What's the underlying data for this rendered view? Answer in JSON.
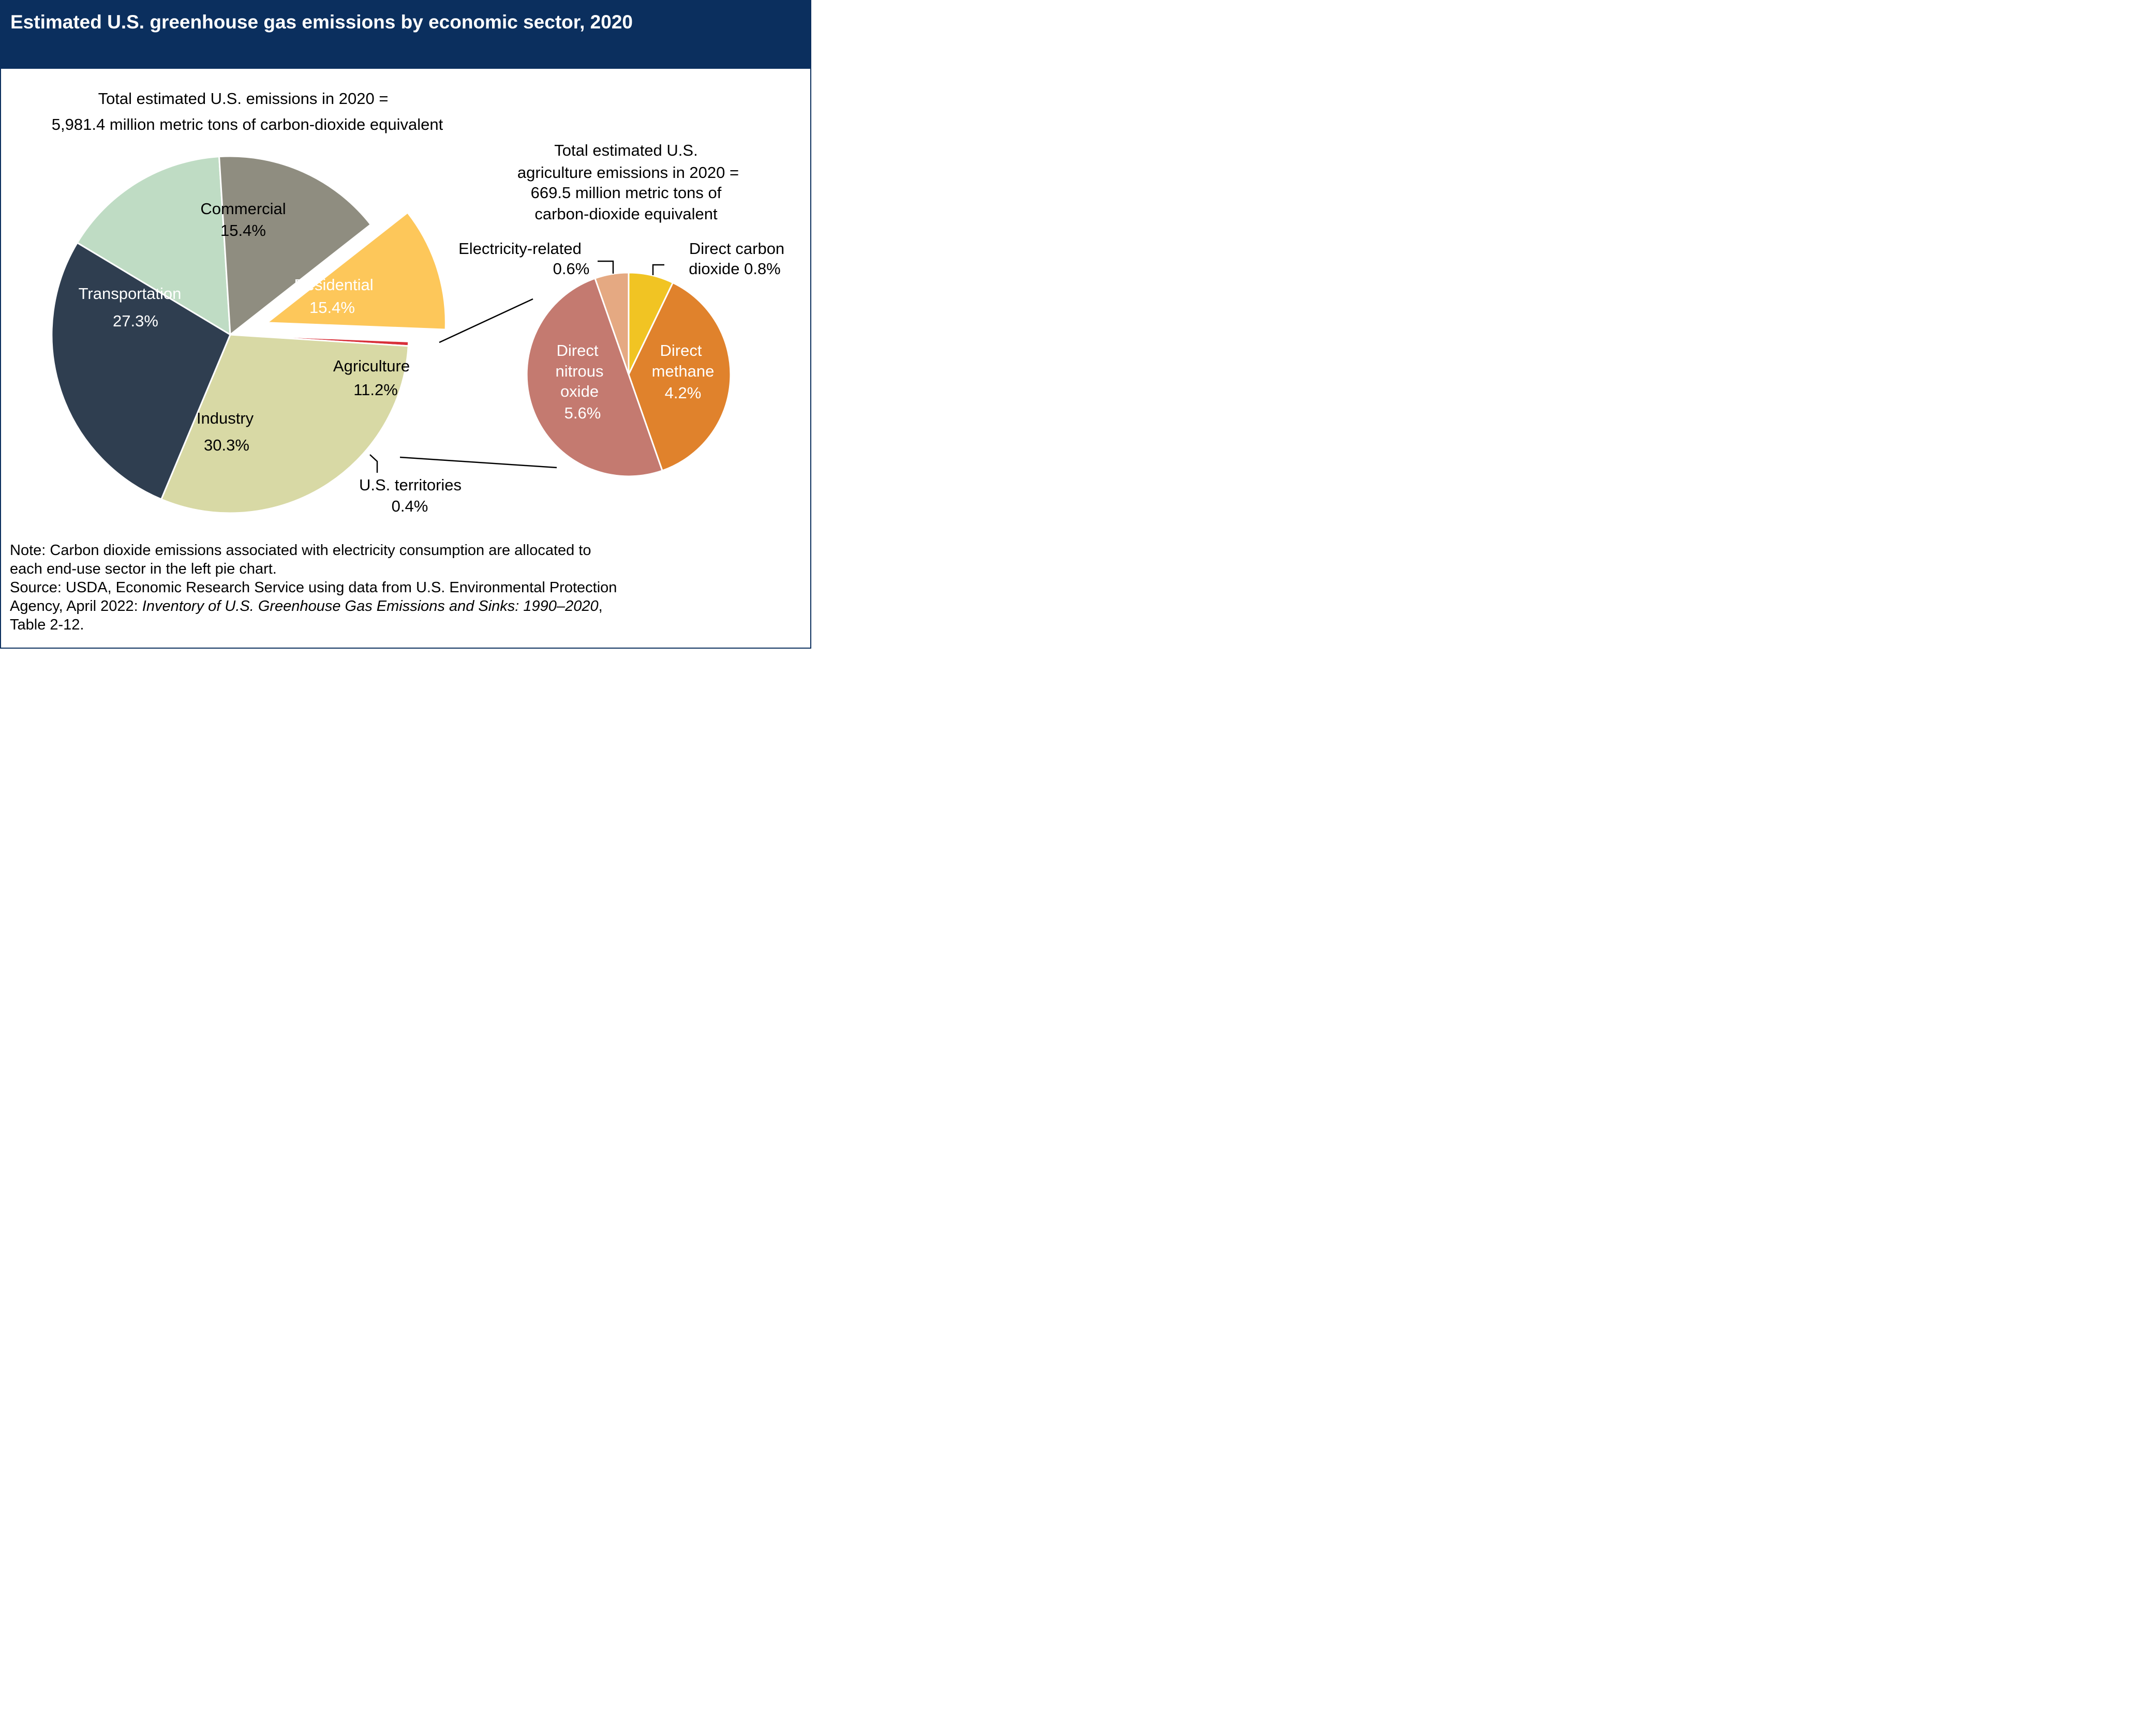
{
  "title": "Estimated U.S. greenhouse gas emissions by economic sector, 2020",
  "chart_data": [
    {
      "type": "pie",
      "title_lines": [
        "Total estimated U.S. emissions in 2020 =",
        "5,981.4 million metric tons of carbon-dioxide equivalent"
      ],
      "slices": [
        {
          "label": "Commercial",
          "value": 15.4,
          "value_label": "15.4%",
          "color": "#bfdcc4"
        },
        {
          "label": "Residential",
          "value": 15.4,
          "value_label": "15.4%",
          "color": "#8f8d80"
        },
        {
          "label": "Agriculture",
          "value": 11.2,
          "value_label": "11.2%",
          "color": "#fdc75a",
          "exploded": true
        },
        {
          "label": "U.S. territories",
          "value": 0.4,
          "value_label": "0.4%",
          "color": "#d8303a"
        },
        {
          "label": "Industry",
          "value": 30.3,
          "value_label": "30.3%",
          "color": "#d8d9a5"
        },
        {
          "label": "Transportation",
          "value": 27.3,
          "value_label": "27.3%",
          "color": "#2f3e50"
        }
      ]
    },
    {
      "type": "pie",
      "title_lines": [
        "Total estimated U.S.",
        "agriculture emissions in 2020 =",
        "669.5 million metric tons of",
        "carbon-dioxide equivalent"
      ],
      "slices": [
        {
          "label": "Direct carbon dioxide",
          "label_lines": [
            "Direct carbon",
            "dioxide 0.8%"
          ],
          "value": 0.8,
          "value_label": "0.8%",
          "color": "#f1c423"
        },
        {
          "label": "Direct methane",
          "label_lines": [
            "Direct",
            "methane",
            "4.2%"
          ],
          "value": 4.2,
          "value_label": "4.2%",
          "color": "#e0822c"
        },
        {
          "label": "Direct nitrous oxide",
          "label_lines": [
            "Direct",
            "nitrous",
            "oxide",
            "5.6%"
          ],
          "value": 5.6,
          "value_label": "5.6%",
          "color": "#c47a70"
        },
        {
          "label": "Electricity-related",
          "label_lines": [
            "Electricity-related",
            "0.6%"
          ],
          "value": 0.6,
          "value_label": "0.6%",
          "color": "#e5a982"
        }
      ]
    }
  ],
  "note": {
    "lines": [
      "Note: Carbon dioxide emissions associated with electricity consumption are allocated to",
      "each end-use sector in the left pie chart.",
      "Source: USDA, Economic Research Service using data from U.S. Environmental Protection"
    ],
    "agency_prefix": "Agency, April 2022: ",
    "report_title": "Inventory of U.S. Greenhouse Gas Emissions and Sinks: 1990–2020",
    "agency_suffix": ",",
    "last_line": "Table 2-12."
  },
  "colors": {
    "title_bar": "#0b2f5e",
    "leader": "#000000"
  }
}
